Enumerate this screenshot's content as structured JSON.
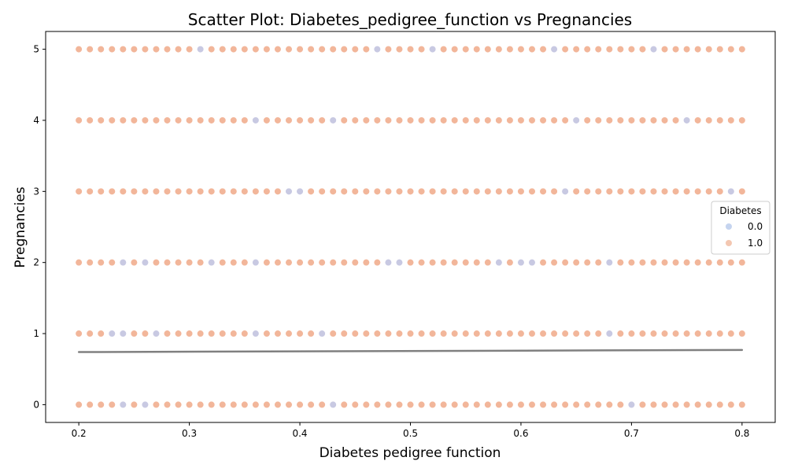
{
  "chart_data": {
    "type": "scatter",
    "title": "Scatter Plot: Diabetes_pedigree_function vs Pregnancies",
    "xlabel": "Diabetes pedigree function",
    "ylabel": "Pregnancies",
    "xlim": [
      0.17,
      0.83
    ],
    "ylim": [
      -0.25,
      5.25
    ],
    "x_ticks": [
      0.2,
      0.3,
      0.4,
      0.5,
      0.6,
      0.7,
      0.8
    ],
    "y_ticks": [
      0,
      1,
      2,
      3,
      4,
      5
    ],
    "x_tick_labels": [
      "0.2",
      "0.3",
      "0.4",
      "0.5",
      "0.6",
      "0.7",
      "0.8"
    ],
    "y_tick_labels": [
      "0",
      "1",
      "2",
      "3",
      "4",
      "5"
    ],
    "grid": false,
    "legend": {
      "title": "Diabetes",
      "placement": "center-right",
      "entries": [
        {
          "label": "0.0",
          "color": "#c5d4ef"
        },
        {
          "label": "1.0",
          "color": "#f3c7b1"
        }
      ]
    },
    "point_colors": {
      "class_0": "#c8c9e2",
      "class_1": "#f2b69a"
    },
    "x_grid": {
      "start": 0.2,
      "stop": 0.8,
      "step": 0.01
    },
    "y_levels": [
      0,
      1,
      2,
      3,
      4,
      5
    ],
    "class_0_points": [
      {
        "x": 0.31,
        "y": 5
      },
      {
        "x": 0.47,
        "y": 5
      },
      {
        "x": 0.52,
        "y": 5
      },
      {
        "x": 0.63,
        "y": 5
      },
      {
        "x": 0.72,
        "y": 5
      },
      {
        "x": 0.36,
        "y": 4
      },
      {
        "x": 0.43,
        "y": 4
      },
      {
        "x": 0.65,
        "y": 4
      },
      {
        "x": 0.75,
        "y": 4
      },
      {
        "x": 0.39,
        "y": 3
      },
      {
        "x": 0.4,
        "y": 3
      },
      {
        "x": 0.64,
        "y": 3
      },
      {
        "x": 0.79,
        "y": 3
      },
      {
        "x": 0.24,
        "y": 2
      },
      {
        "x": 0.26,
        "y": 2
      },
      {
        "x": 0.32,
        "y": 2
      },
      {
        "x": 0.36,
        "y": 2
      },
      {
        "x": 0.48,
        "y": 2
      },
      {
        "x": 0.49,
        "y": 2
      },
      {
        "x": 0.58,
        "y": 2
      },
      {
        "x": 0.6,
        "y": 2
      },
      {
        "x": 0.61,
        "y": 2
      },
      {
        "x": 0.68,
        "y": 2
      },
      {
        "x": 0.23,
        "y": 1
      },
      {
        "x": 0.24,
        "y": 1
      },
      {
        "x": 0.27,
        "y": 1
      },
      {
        "x": 0.36,
        "y": 1
      },
      {
        "x": 0.42,
        "y": 1
      },
      {
        "x": 0.68,
        "y": 1
      },
      {
        "x": 0.24,
        "y": 0
      },
      {
        "x": 0.26,
        "y": 0
      },
      {
        "x": 0.43,
        "y": 0
      },
      {
        "x": 0.7,
        "y": 0
      }
    ],
    "regression_line": {
      "color": "#808080",
      "x": [
        0.2,
        0.8
      ],
      "y": [
        0.74,
        0.77
      ]
    }
  }
}
